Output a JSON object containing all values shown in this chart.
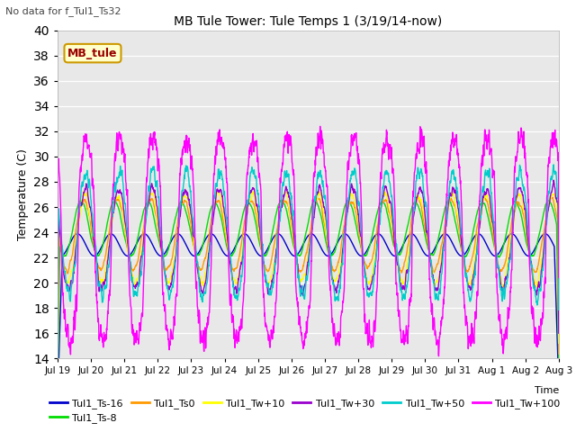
{
  "title": "MB Tule Tower: Tule Temps 1 (3/19/14-now)",
  "subtitle": "No data for f_Tul1_Ts32",
  "ylabel": "Temperature (C)",
  "xlabel": "Time",
  "ylim": [
    14,
    40
  ],
  "yticks": [
    14,
    16,
    18,
    20,
    22,
    24,
    26,
    28,
    30,
    32,
    34,
    36,
    38,
    40
  ],
  "xtick_labels": [
    "Jul 19",
    "Jul 20",
    "Jul 21",
    "Jul 22",
    "Jul 23",
    "Jul 24",
    "Jul 25",
    "Jul 26",
    "Jul 27",
    "Jul 28",
    "Jul 29",
    "Jul 30",
    "Jul 31",
    "Aug 1",
    "Aug 2",
    "Aug 3"
  ],
  "legend_label": "MB_tule",
  "series_colors": {
    "Tul1_Ts-16": "#0000cc",
    "Tul1_Ts-8": "#00dd00",
    "Tul1_Ts0": "#ff9900",
    "Tul1_Tw+10": "#ffff00",
    "Tul1_Tw+30": "#9900cc",
    "Tul1_Tw+50": "#00cccc",
    "Tul1_Tw+100": "#ff00ff"
  },
  "n_days": 15,
  "pts_per_day": 144,
  "fig_bg": "#ffffff",
  "axes_bg": "#e8e8e8"
}
